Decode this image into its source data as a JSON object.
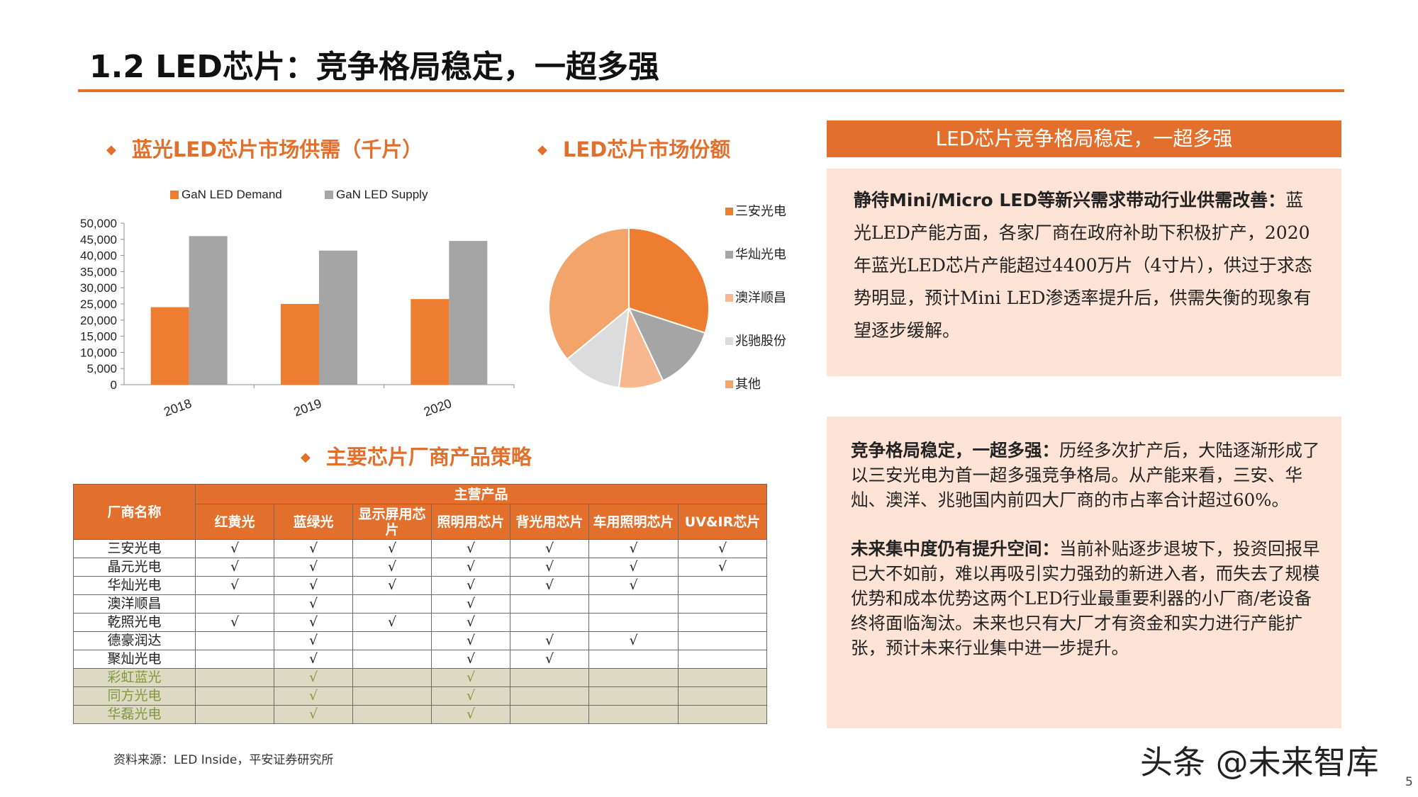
{
  "header": {
    "title": "1.2 LED芯片：竞争格局稳定，一超多强"
  },
  "sections": {
    "supply_demand_title": "蓝光LED芯片市场供需（千片）",
    "market_share_title": "LED芯片市场份额",
    "strategy_title": "主要芯片厂商产品策略",
    "diamond": "◆"
  },
  "chart_data": [
    {
      "type": "bar",
      "categories": [
        "2018",
        "2019",
        "2020"
      ],
      "series": [
        {
          "name": "GaN LED Demand",
          "values": [
            24000,
            25000,
            26500
          ],
          "color": "#ed7d31"
        },
        {
          "name": "GaN LED Supply",
          "values": [
            46000,
            41500,
            44500
          ],
          "color": "#a5a5a5"
        }
      ],
      "ylim": [
        0,
        50000
      ],
      "yticks": [
        "0",
        "5,000",
        "10,000",
        "15,000",
        "20,000",
        "25,000",
        "30,000",
        "35,000",
        "40,000",
        "45,000",
        "50,000"
      ],
      "legend": "top"
    },
    {
      "type": "pie",
      "labels": [
        "三安光电",
        "华灿光电",
        "澳洋顺昌",
        "兆驰股份",
        "其他"
      ],
      "values": [
        30,
        13,
        9,
        12,
        36
      ],
      "colors": [
        "#ed7d31",
        "#a5a5a5",
        "#f7b88f",
        "#dcdcdc",
        "#f2a46b"
      ],
      "legend": "right"
    }
  ],
  "table": {
    "corner": "厂商名称",
    "group_header": "主营产品",
    "columns": [
      "红黄光",
      "蓝绿光",
      "显示屏用芯片",
      "照明用芯片",
      "背光用芯片",
      "车用照明芯片",
      "UV&IR芯片"
    ],
    "check": "√",
    "rows": [
      {
        "name": "三安光电",
        "cells": [
          "√",
          "√",
          "√",
          "√",
          "√",
          "√",
          "√"
        ],
        "highlight": false
      },
      {
        "name": "晶元光电",
        "cells": [
          "√",
          "√",
          "√",
          "√",
          "√",
          "√",
          "√"
        ],
        "highlight": false
      },
      {
        "name": "华灿光电",
        "cells": [
          "√",
          "√",
          "√",
          "√",
          "√",
          "√",
          ""
        ],
        "highlight": false
      },
      {
        "name": "澳洋顺昌",
        "cells": [
          "",
          "√",
          "",
          "√",
          "",
          "",
          ""
        ],
        "highlight": false
      },
      {
        "name": "乾照光电",
        "cells": [
          "√",
          "√",
          "√",
          "√",
          "",
          "",
          ""
        ],
        "highlight": false
      },
      {
        "name": "德豪润达",
        "cells": [
          "",
          "√",
          "",
          "√",
          "√",
          "√",
          ""
        ],
        "highlight": false
      },
      {
        "name": "聚灿光电",
        "cells": [
          "",
          "√",
          "",
          "√",
          "√",
          "",
          ""
        ],
        "highlight": false
      },
      {
        "name": "彩虹蓝光",
        "cells": [
          "",
          "√",
          "",
          "√",
          "",
          "",
          ""
        ],
        "highlight": true
      },
      {
        "name": "同方光电",
        "cells": [
          "",
          "√",
          "",
          "√",
          "",
          "",
          ""
        ],
        "highlight": true
      },
      {
        "name": "华磊光电",
        "cells": [
          "",
          "√",
          "",
          "√",
          "",
          "",
          ""
        ],
        "highlight": true
      }
    ]
  },
  "right_panel": {
    "header": "LED芯片竞争格局稳定，一超多强",
    "block1_bold": "静待Mini/Micro LED等新兴需求带动行业供需改善：",
    "block1_text": "蓝光LED产能方面，各家厂商在政府补助下积极扩产，2020年蓝光LED芯片产能超过4400万片（4寸片），供过于求态势明显，预计Mini LED渗透率提升后，供需失衡的现象有望逐步缓解。",
    "block2_bold": "竞争格局稳定，一超多强：",
    "block2_text": "历经多次扩产后，大陆逐渐形成了以三安光电为首一超多强竞争格局。从产能来看，三安、华灿、澳洋、兆驰国内前四大厂商的市占率合计超过60%。",
    "block3_bold": "未来集中度仍有提升空间：",
    "block3_text": "当前补贴逐步退坡下，投资回报早已大不如前，难以再吸引实力强劲的新进入者，而失去了规模优势和成本优势这两个LED行业最重要利器的小厂商/老设备终将面临淘汰。未来也只有大厂才有资金和实力进行产能扩张，预计未来行业集中进一步提升。"
  },
  "footer": {
    "source": "资料来源：LED Inside，平安证券研究所",
    "watermark": "头条 @未来智库",
    "page": "5"
  }
}
